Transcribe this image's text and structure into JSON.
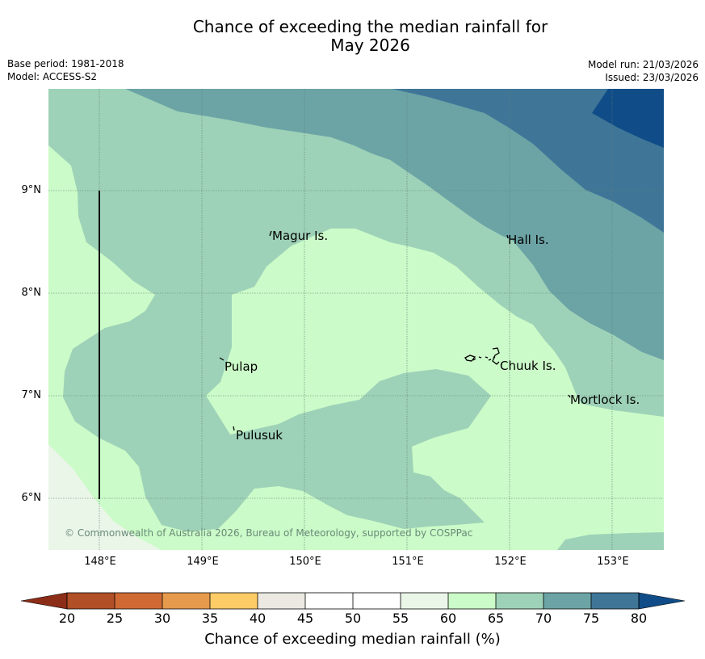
{
  "title": {
    "line1": "Chance of exceeding the median rainfall for",
    "line2": "May 2026"
  },
  "meta": {
    "base_period": "Base period: 1981-2018",
    "model": "Model: ACCESS-S2",
    "model_run": "Model run: 21/03/2026",
    "issued": "Issued: 23/03/2026"
  },
  "map": {
    "extent": {
      "lon_min": 147.5,
      "lon_max": 153.5,
      "lat_min": 5.5,
      "lat_max": 10.0
    },
    "lat_labels": [
      "9°N",
      "8°N",
      "7°N",
      "6°N"
    ],
    "lon_labels": [
      "148°E",
      "149°E",
      "150°E",
      "151°E",
      "152°E",
      "153°E"
    ],
    "places": {
      "magur": "Magur Is.",
      "hall": "Hall Is.",
      "pulap": "Pulap",
      "chuuk": "Chuuk Is.",
      "mortlock": "Mortlock Is.",
      "pulusuk": "Pulusuk"
    },
    "copyright": "© Commonwealth of Australia 2026, Bureau of Meteorology, supported by COSPPac"
  },
  "colorbar": {
    "ticks": [
      "20",
      "25",
      "30",
      "35",
      "40",
      "45",
      "50",
      "55",
      "60",
      "65",
      "70",
      "75",
      "80"
    ],
    "colors": {
      "below_20": "#8c2d18",
      "c20_25": "#b14f26",
      "c25_30": "#d06a35",
      "c30_35": "#e59a4c",
      "c35_40": "#fdcc66",
      "c40_45": "#ece9e2",
      "c45_50": "#ffffff",
      "c50_55": "#ffffff",
      "c55_60": "#eaf6e8",
      "c60_65": "#cbfbc8",
      "c65_70": "#9ed2b8",
      "c70_75": "#6ca4a6",
      "c75_80": "#3f7698",
      "above_80": "#104d88"
    },
    "label": "Chance of exceeding median rainfall (%)"
  }
}
